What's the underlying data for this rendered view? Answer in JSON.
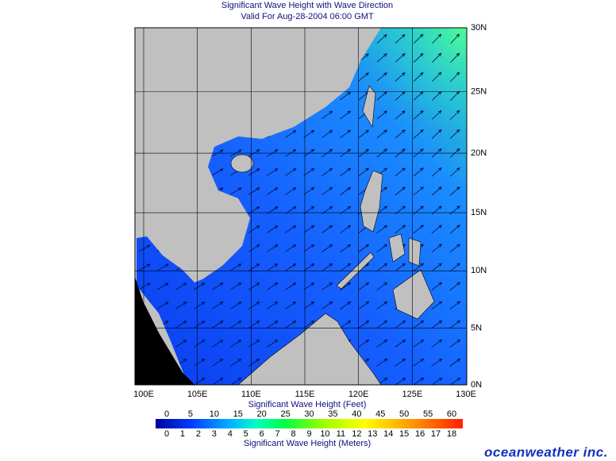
{
  "chart_data": {
    "type": "map",
    "title": "Significant Wave Height with Wave Direction",
    "subtitle": "Valid For Aug-28-2004 06:00 GMT",
    "xticks": [
      {
        "value": 100,
        "label": "100E"
      },
      {
        "value": 105,
        "label": "105E"
      },
      {
        "value": 110,
        "label": "110E"
      },
      {
        "value": 115,
        "label": "115E"
      },
      {
        "value": 120,
        "label": "120E"
      },
      {
        "value": 125,
        "label": "125E"
      },
      {
        "value": 130,
        "label": "130E"
      }
    ],
    "yticks": [
      {
        "value": 0,
        "label": "0N"
      },
      {
        "value": 5,
        "label": "5N"
      },
      {
        "value": 10,
        "label": "10N"
      },
      {
        "value": 15,
        "label": "15N"
      },
      {
        "value": 20,
        "label": "20N"
      },
      {
        "value": 25,
        "label": "25N"
      },
      {
        "value": 30,
        "label": "30N"
      }
    ],
    "colorbar": {
      "feet_label": "Significant Wave Height (Feet)",
      "feet_ticks": [
        0,
        5,
        10,
        15,
        20,
        25,
        30,
        35,
        40,
        45,
        50,
        55,
        60
      ],
      "meters_label": "Significant Wave Height (Meters)",
      "meters_ticks": [
        0,
        1,
        2,
        3,
        4,
        5,
        6,
        7,
        8,
        9,
        10,
        11,
        12,
        13,
        14,
        15,
        16,
        17,
        18
      ]
    },
    "brand": "oceanweather inc."
  }
}
